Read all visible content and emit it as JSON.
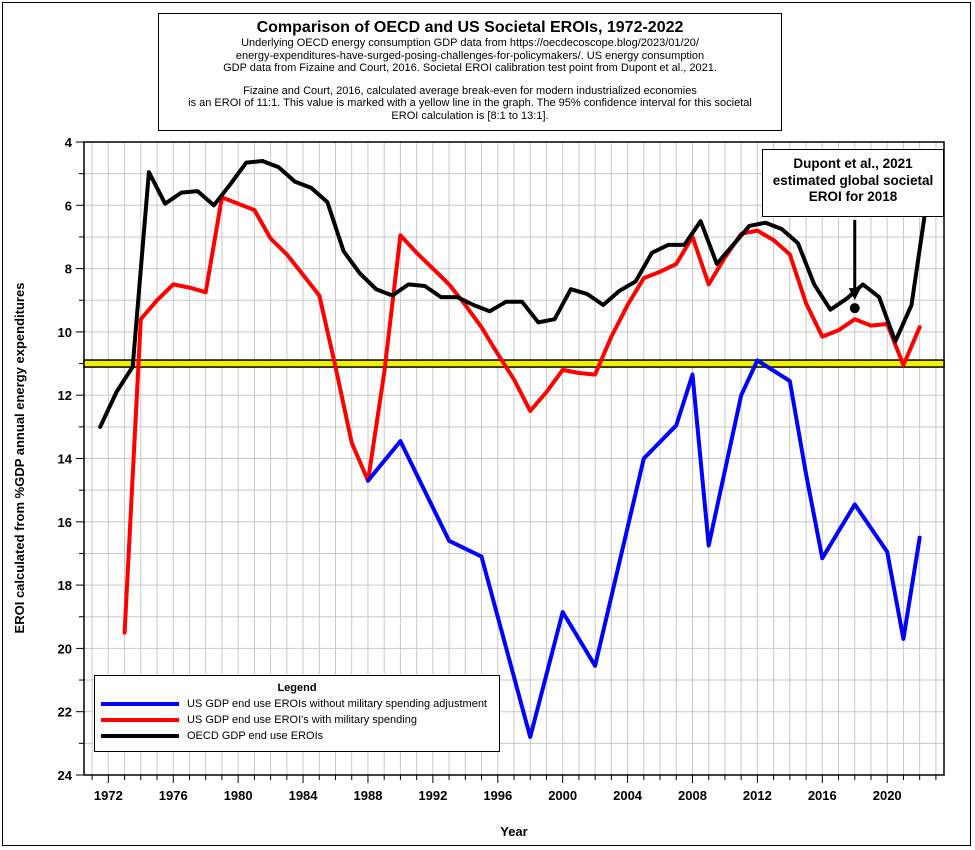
{
  "title_box": {
    "title": "Comparison of OECD and US Societal EROIs, 1972-2022",
    "lines_1": [
      "Underlying OECD energy consumption GDP data from https://oecdecoscope.blog/2023/01/20/",
      "energy-expenditures-have-surged-posing-challenges-for-policymakers/.  US energy consumption",
      "GDP data from Fizaine and Court, 2016.  Societal EROI calibration test point from Dupont et al., 2021."
    ],
    "lines_2": [
      "Fizaine and Court, 2016, calculated average break-even for modern industrialized economies",
      "is an EROI of 11:1.  This value is marked with a yellow line in the graph.  The 95% confidence interval for this societal",
      "EROI calculation is [8:1 to 13:1]."
    ]
  },
  "annotation": {
    "lines": [
      "Dupont et al., 2021",
      "estimated global societal",
      "EROI for 2018"
    ]
  },
  "legend": {
    "title": "Legend",
    "items": [
      {
        "label": "US GDP end use EROIs without military spending adjustment",
        "color": "#0000ff"
      },
      {
        "label": "US GDP end use EROI's with military spending",
        "color": "#ff0000"
      },
      {
        "label": "OECD GDP end use EROIs",
        "color": "#000000"
      }
    ]
  },
  "chart_data": {
    "type": "line",
    "xlabel": "Year",
    "ylabel": "EROI calculated from %GDP annual energy expenditures",
    "xlim": [
      1970.5,
      2023.5
    ],
    "ylim": [
      24,
      4
    ],
    "y_inverted": true,
    "xticks": [
      1972,
      1976,
      1980,
      1984,
      1988,
      1992,
      1996,
      2000,
      2004,
      2008,
      2012,
      2016,
      2020
    ],
    "yticks": [
      4,
      6,
      8,
      10,
      12,
      14,
      16,
      18,
      20,
      22,
      24
    ],
    "grid": true,
    "legend_position": "bottom-left",
    "reference_line": {
      "y": 11,
      "color": "#f0f000",
      "label": "break-even EROI 11:1"
    },
    "point": {
      "x": 2018,
      "y": 9.25,
      "label": "Dupont et al., 2021 estimated global societal EROI for 2018"
    },
    "series": [
      {
        "name": "OECD GDP end use EROIs",
        "color": "#000000",
        "x": [
          1971.5,
          1972.5,
          1973.5,
          1974.5,
          1975.5,
          1976.5,
          1977.5,
          1978.5,
          1979.5,
          1980.5,
          1981.5,
          1982.5,
          1983.5,
          1984.5,
          1985.5,
          1986.5,
          1987.5,
          1988.5,
          1989.5,
          1990.5,
          1991.5,
          1992.5,
          1993.5,
          1994.5,
          1995.5,
          1996.5,
          1997.5,
          1998.5,
          1999.5,
          2000.5,
          2001.5,
          2002.5,
          2003.5,
          2004.5,
          2005.5,
          2006.5,
          2007.5,
          2008.5,
          2009.5,
          2010.5,
          2011.5,
          2012.5,
          2013.5,
          2014.5,
          2015.5,
          2016.5,
          2017.5,
          2018.5,
          2019.5,
          2020.5,
          2021.5,
          2022.3
        ],
        "values": [
          13.0,
          11.9,
          11.1,
          4.95,
          5.95,
          5.6,
          5.55,
          6.0,
          5.35,
          4.65,
          4.6,
          4.8,
          5.25,
          5.45,
          5.9,
          7.45,
          8.15,
          8.65,
          8.85,
          8.5,
          8.55,
          8.9,
          8.9,
          9.15,
          9.35,
          9.05,
          9.05,
          9.7,
          9.6,
          8.65,
          8.8,
          9.15,
          8.7,
          8.4,
          7.5,
          7.25,
          7.25,
          6.5,
          7.85,
          7.25,
          6.65,
          6.55,
          6.75,
          7.2,
          8.5,
          9.3,
          8.95,
          8.5,
          8.9,
          10.3,
          9.15,
          6.35
        ]
      },
      {
        "name": "US GDP end use EROI's with military spending",
        "color": "#ff0000",
        "x": [
          1973,
          1974,
          1975,
          1976,
          1977,
          1978,
          1979,
          1980,
          1981,
          1982,
          1983,
          1984,
          1985,
          1986,
          1987,
          1988,
          1989,
          1990,
          1991,
          1992,
          1993,
          1994,
          1995,
          1996,
          1997,
          1998,
          1999,
          2000,
          2001,
          2002,
          2003,
          2004,
          2005,
          2006,
          2007,
          2008,
          2009,
          2010,
          2011,
          2012,
          2013,
          2014,
          2015,
          2016,
          2017,
          2018,
          2019,
          2020,
          2021,
          2022
        ],
        "values": [
          19.5,
          9.6,
          9.0,
          8.5,
          8.6,
          8.75,
          5.75,
          5.95,
          6.15,
          7.05,
          7.55,
          8.2,
          8.85,
          11.1,
          13.5,
          14.7,
          11.3,
          6.95,
          7.5,
          8.0,
          8.5,
          9.15,
          9.85,
          10.7,
          11.5,
          12.5,
          11.9,
          11.2,
          11.3,
          11.35,
          10.15,
          9.15,
          8.3,
          8.1,
          7.85,
          7.0,
          8.5,
          7.65,
          6.9,
          6.8,
          7.1,
          7.55,
          9.1,
          10.15,
          9.95,
          9.6,
          9.8,
          9.75,
          11.05,
          9.85
        ]
      },
      {
        "name": "US GDP end use EROIs without military spending adjustment",
        "color": "#0000ff",
        "x": [
          1988,
          1990,
          1993,
          1995,
          1998,
          2000,
          2002,
          2005,
          2007,
          2008,
          2009,
          2011,
          2012,
          2014,
          2015,
          2016,
          2018,
          2020,
          2021,
          2022
        ],
        "values": [
          14.7,
          13.45,
          16.6,
          17.1,
          22.8,
          18.85,
          20.55,
          14.0,
          12.95,
          11.35,
          16.75,
          12.0,
          10.9,
          11.55,
          14.5,
          17.15,
          15.45,
          16.95,
          19.7,
          16.5
        ]
      }
    ]
  }
}
